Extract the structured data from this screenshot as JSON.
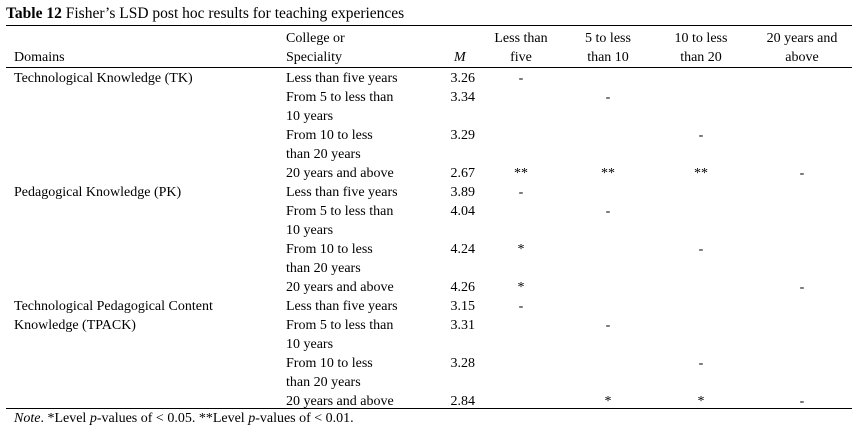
{
  "caption": {
    "label": "Table 12",
    "text": " Fisher’s LSD post hoc results for teaching experiences"
  },
  "headers": {
    "domains": "Domains",
    "college_line1": "College or",
    "college_line2": "Speciality",
    "mean": "M",
    "col1_line1": "Less than",
    "col1_line2": "five",
    "col2_line1": "5 to less",
    "col2_line2": "than 10",
    "col3_line1": "10 to less",
    "col3_line2": "than 20",
    "col4_line1": "20 years and",
    "col4_line2": "above"
  },
  "domains": [
    {
      "line1": "Technological Knowledge (TK)",
      "line2": ""
    },
    {
      "line1": "Pedagogical Knowledge (PK)",
      "line2": ""
    },
    {
      "line1": "Technological Pedagogical Content",
      "line2": "Knowledge (TPACK)"
    }
  ],
  "rows": [
    {
      "group": "Less than five years",
      "m": "3.26",
      "c1": "-",
      "c2": "",
      "c3": "",
      "c4": ""
    },
    {
      "group": "From 5 to less than",
      "m": "3.34",
      "c1": "",
      "c2": "-",
      "c3": "",
      "c4": ""
    },
    {
      "group": "10 years",
      "m": "",
      "c1": "",
      "c2": "",
      "c3": "",
      "c4": ""
    },
    {
      "group": "From 10 to less",
      "m": "3.29",
      "c1": "",
      "c2": "",
      "c3": "-",
      "c4": ""
    },
    {
      "group": "than 20 years",
      "m": "",
      "c1": "",
      "c2": "",
      "c3": "",
      "c4": ""
    },
    {
      "group": "20 years and above",
      "m": "2.67",
      "c1": "**",
      "c2": "**",
      "c3": "**",
      "c4": "-"
    },
    {
      "group": "Less than five years",
      "m": "3.89",
      "c1": "-",
      "c2": "",
      "c3": "",
      "c4": ""
    },
    {
      "group": "From 5 to less than",
      "m": "4.04",
      "c1": "",
      "c2": "-",
      "c3": "",
      "c4": ""
    },
    {
      "group": "10 years",
      "m": "",
      "c1": "",
      "c2": "",
      "c3": "",
      "c4": ""
    },
    {
      "group": "From 10 to less",
      "m": "4.24",
      "c1": "*",
      "c2": "",
      "c3": "-",
      "c4": ""
    },
    {
      "group": "than 20 years",
      "m": "",
      "c1": "",
      "c2": "",
      "c3": "",
      "c4": ""
    },
    {
      "group": "20 years and above",
      "m": "4.26",
      "c1": "*",
      "c2": "",
      "c3": "",
      "c4": "-"
    },
    {
      "group": "Less than five years",
      "m": "3.15",
      "c1": "-",
      "c2": "",
      "c3": "",
      "c4": ""
    },
    {
      "group": "From 5 to less than",
      "m": "3.31",
      "c1": "",
      "c2": "-",
      "c3": "",
      "c4": ""
    },
    {
      "group": "10 years",
      "m": "",
      "c1": "",
      "c2": "",
      "c3": "",
      "c4": ""
    },
    {
      "group": "From 10 to less",
      "m": "3.28",
      "c1": "",
      "c2": "",
      "c3": "-",
      "c4": ""
    },
    {
      "group": "than 20 years",
      "m": "",
      "c1": "",
      "c2": "",
      "c3": "",
      "c4": ""
    },
    {
      "group": "20 years and above",
      "m": "2.84",
      "c1": "",
      "c2": "*",
      "c3": "*",
      "c4": "-"
    }
  ],
  "note": {
    "label": "Note",
    "part1": ". *Level ",
    "p1": "p",
    "part2": "-values of < 0.05. **Level ",
    "p2": "p",
    "part3": "-values of < 0.01."
  }
}
